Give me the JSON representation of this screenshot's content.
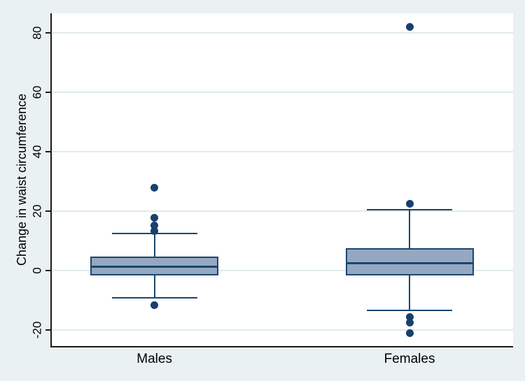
{
  "chart_data": {
    "type": "box",
    "title": "",
    "ylabel": "Change in waist circumference",
    "xlabel": "",
    "categories": [
      "Males",
      "Females"
    ],
    "yticks": [
      -20,
      0,
      20,
      40,
      60,
      80
    ],
    "ylim": [
      -25.3,
      86.7
    ],
    "grid": true,
    "legend": "none",
    "series": [
      {
        "name": "Males",
        "whisker_low": -9,
        "q1": -1.2,
        "median": 1.3,
        "q3": 4.5,
        "whisker_high": 12.5,
        "outliers": [
          28,
          17.8,
          15.4,
          13.5,
          -11.5
        ]
      },
      {
        "name": "Females",
        "whisker_low": -13.2,
        "q1": -1.2,
        "median": 2.7,
        "q3": 7.4,
        "whisker_high": 20.5,
        "outliers": [
          82,
          22.5,
          -15.5,
          -17.5,
          -21
        ]
      }
    ],
    "colors": {
      "background": "#eaf1f2",
      "plot_background": "#ffffff",
      "gridline": "#dfeaee",
      "box_fill": "#95a8c1",
      "box_border": "#1a476f",
      "whisker": "#1a476f",
      "outlier_dot": "#17406b",
      "axis_line": "#1a1a1a",
      "text": "#000000"
    }
  }
}
